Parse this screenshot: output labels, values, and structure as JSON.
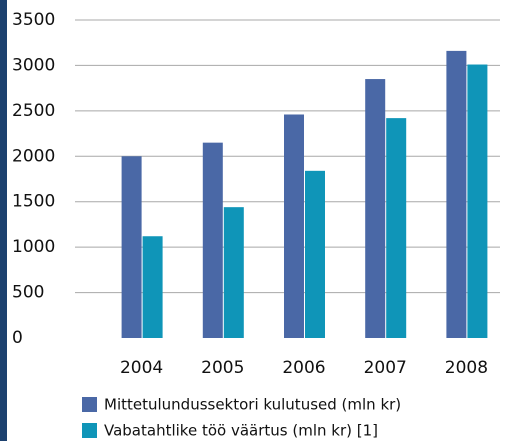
{
  "chart_data": {
    "type": "bar",
    "categories": [
      "2004",
      "2005",
      "2006",
      "2007",
      "2008"
    ],
    "series": [
      {
        "name": "Mittetulundussektori kulutused (mln kr)",
        "color": "#4a68a6",
        "values": [
          2000,
          2150,
          2460,
          2850,
          3160
        ]
      },
      {
        "name": "Vabatahtlike töö väärtus (mln kr) [1]",
        "color": "#0f95b8",
        "values": [
          1120,
          1440,
          1840,
          2420,
          3010
        ]
      }
    ],
    "ylim": [
      0,
      3500
    ],
    "yticks": [
      0,
      500,
      1000,
      1500,
      2000,
      2500,
      3000,
      3500
    ],
    "grid": true
  }
}
